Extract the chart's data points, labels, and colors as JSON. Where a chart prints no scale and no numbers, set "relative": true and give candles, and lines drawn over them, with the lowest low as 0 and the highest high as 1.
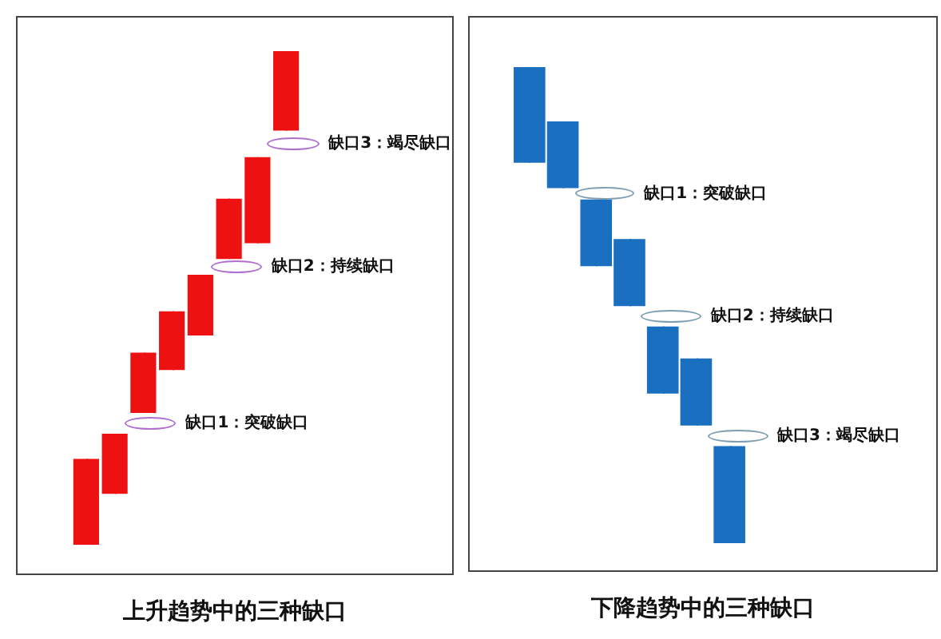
{
  "chart_data": [
    {
      "type": "candlestick",
      "title": "上升趋势中的三种缺口",
      "relative": true,
      "color": "#ee1111",
      "categories": [
        null,
        null,
        null,
        null,
        null,
        null,
        null,
        null
      ],
      "ohlc": [
        [
          0,
          0.174,
          0,
          0.174
        ],
        [
          0.103,
          0.225,
          0.103,
          0.225
        ],
        [
          0.267,
          0.389,
          0.267,
          0.389
        ],
        [
          0.354,
          0.473,
          0.354,
          0.473
        ],
        [
          0.424,
          0.547,
          0.424,
          0.547
        ],
        [
          0.579,
          0.701,
          0.579,
          0.701
        ],
        [
          0.611,
          0.785,
          0.611,
          0.785
        ],
        [
          0.839,
          1,
          0.839,
          1
        ]
      ],
      "annotations": [
        "缺口1：突破缺口",
        "缺口2：持续缺口",
        "缺口3：竭尽缺口"
      ]
    },
    {
      "type": "candlestick",
      "title": "下降趋势中的三种缺口",
      "relative": true,
      "color": "#1a6fc0",
      "categories": [
        null,
        null,
        null,
        null,
        null,
        null,
        null
      ],
      "ohlc": [
        [
          1,
          1,
          0.799,
          0.799
        ],
        [
          0.886,
          0.886,
          0.746,
          0.746
        ],
        [
          0.722,
          0.722,
          0.582,
          0.582
        ],
        [
          0.639,
          0.639,
          0.498,
          0.498
        ],
        [
          0.455,
          0.455,
          0.314,
          0.314
        ],
        [
          0.388,
          0.388,
          0.247,
          0.247
        ],
        [
          0.204,
          0.204,
          0,
          0
        ]
      ],
      "annotations": [
        "缺口1：突破缺口",
        "缺口2：持续缺口",
        "缺口3：竭尽缺口"
      ]
    }
  ]
}
